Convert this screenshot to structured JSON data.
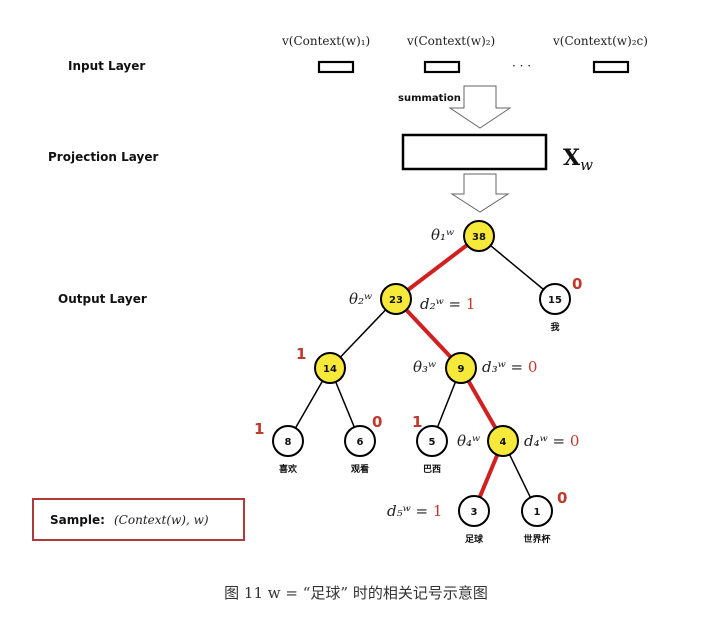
{
  "layers": {
    "input": "Input Layer",
    "projection": "Projection Layer",
    "output": "Output Layer"
  },
  "context_vectors": [
    "v(Context(w)₁)",
    "v(Context(w)₂)",
    "v(Context(w)₂c)"
  ],
  "ellipsis": "· · ·",
  "summation": "summation",
  "projection_vector": "X",
  "projection_vector_sub": "w",
  "sample": {
    "label": "Sample:",
    "value": "(Context(w), w)"
  },
  "nodes": [
    {
      "id": "n38",
      "value": "38",
      "highlight": true
    },
    {
      "id": "n23",
      "value": "23",
      "highlight": true
    },
    {
      "id": "n15",
      "value": "15",
      "highlight": false,
      "word": "我",
      "bit": "0"
    },
    {
      "id": "n14",
      "value": "14",
      "highlight": true,
      "bit": "1"
    },
    {
      "id": "n9",
      "value": "9",
      "highlight": true
    },
    {
      "id": "n8",
      "value": "8",
      "highlight": false,
      "word": "喜欢",
      "bit": "1"
    },
    {
      "id": "n6",
      "value": "6",
      "highlight": false,
      "word": "观看",
      "bit": "0"
    },
    {
      "id": "n5",
      "value": "5",
      "highlight": false,
      "word": "巴西",
      "bit": "1"
    },
    {
      "id": "n4",
      "value": "4",
      "highlight": true
    },
    {
      "id": "n3",
      "value": "3",
      "highlight": false,
      "word": "足球"
    },
    {
      "id": "n1",
      "value": "1",
      "highlight": false,
      "word": "世界杯",
      "bit": "0"
    }
  ],
  "params": {
    "theta1": "θ₁ʷ",
    "theta2": "θ₂ʷ",
    "theta3": "θ₃ʷ",
    "theta4": "θ₄ʷ"
  },
  "codes": {
    "d2": {
      "label": "d₂ʷ =",
      "value": "1"
    },
    "d3": {
      "label": "d₃ʷ =",
      "value": "0"
    },
    "d4": {
      "label": "d₄ʷ =",
      "value": "0"
    },
    "d5": {
      "label": "d₅ʷ =",
      "value": "1"
    }
  },
  "caption": "图 11   w = “足球” 时的相关记号示意图",
  "colors": {
    "highlight_fill": "#f7e93a",
    "path_edge": "#d02020",
    "code_red": "#c0392b",
    "sample_border": "#b03a3a"
  }
}
